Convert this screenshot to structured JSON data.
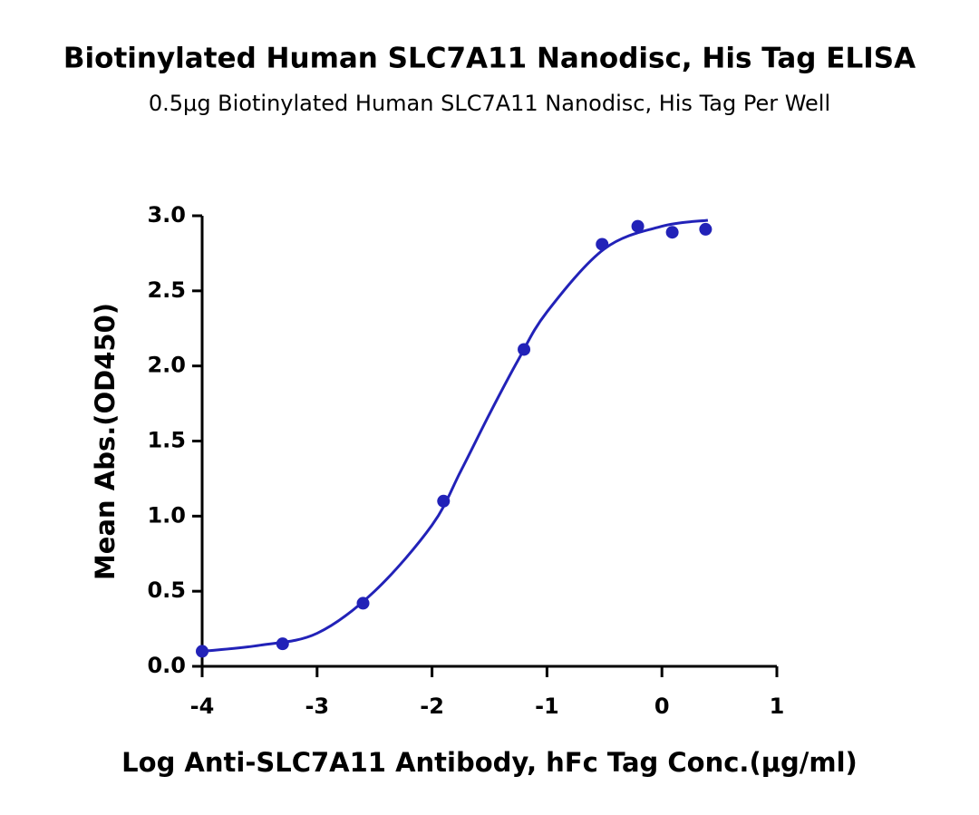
{
  "chart_data": {
    "type": "scatter",
    "title": "Biotinylated Human SLC7A11 Nanodisc, His Tag ELISA",
    "subtitle": "0.5μg Biotinylated Human SLC7A11 Nanodisc, His Tag Per Well",
    "x_label": "Log Anti-SLC7A11 Antibody, hFc Tag Conc.(μg/ml)",
    "y_label": "Mean Abs.(OD450)",
    "series": [
      {
        "mode": "markers",
        "color": "#2222b8",
        "x": [
          -4,
          -3.3,
          -2.6,
          -1.9,
          -1.2,
          -0.52,
          -0.21,
          0.09,
          0.38
        ],
        "values": [
          0.1,
          0.15,
          0.42,
          1.1,
          2.11,
          2.81,
          2.93,
          2.89,
          2.91
        ]
      },
      {
        "mode": "line",
        "color": "#2222b8",
        "x": [
          -4,
          -3.5,
          -3,
          -2.5,
          -2,
          -1.75,
          -1.5,
          -1.25,
          -1,
          -0.5,
          0,
          0.4
        ],
        "values": [
          0.1,
          0.14,
          0.22,
          0.5,
          0.94,
          1.3,
          1.68,
          2.04,
          2.36,
          2.78,
          2.93,
          2.97
        ]
      }
    ],
    "xlim": [
      -4,
      1
    ],
    "xticks": [
      -4,
      -3,
      -2,
      -1,
      0,
      1
    ],
    "ylim": [
      0,
      3
    ],
    "yticks": [
      {
        "value": 0,
        "label": "0.0"
      },
      0.5,
      {
        "value": 1,
        "label": "1.0"
      },
      1.5,
      {
        "value": 2,
        "label": "2.0"
      },
      2.5,
      {
        "value": 3,
        "label": "3.0"
      }
    ]
  }
}
